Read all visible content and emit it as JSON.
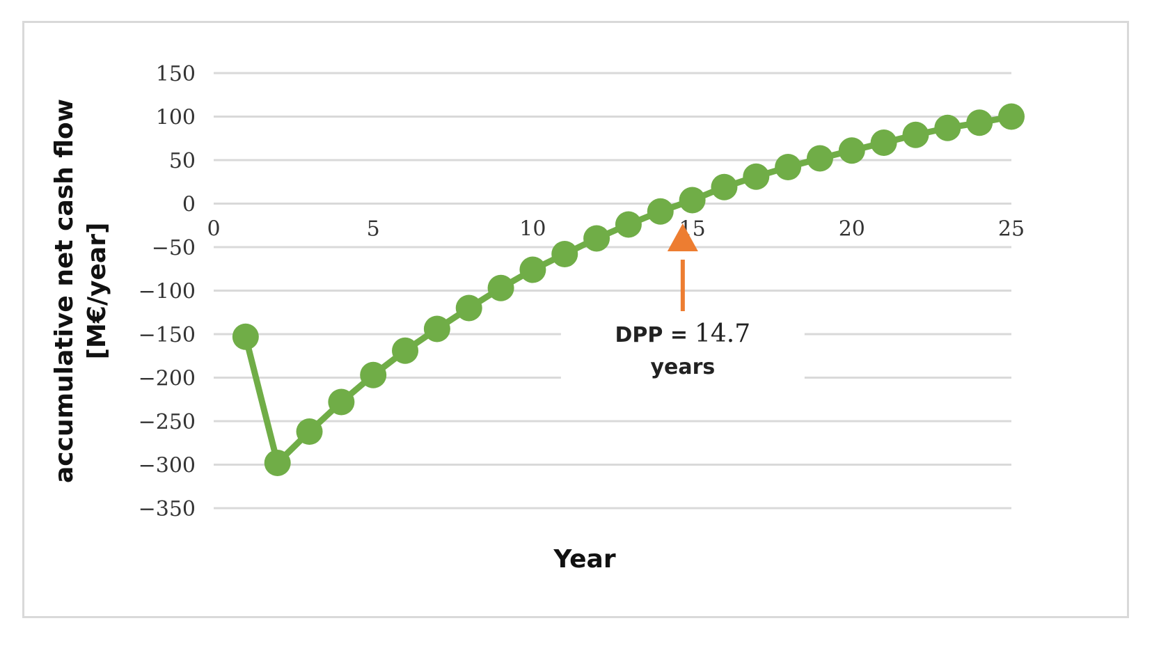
{
  "chart_data": {
    "type": "line",
    "title": "",
    "xlabel": "Year",
    "ylabel": "accumulative net cash flow [M€/year]",
    "ylabel_lines": [
      "accumulative net cash flow",
      "[M€/year]"
    ],
    "xlim": [
      0,
      25
    ],
    "ylim": [
      -350,
      150
    ],
    "xticks": [
      0,
      5,
      10,
      15,
      20,
      25
    ],
    "yticks": [
      150,
      100,
      50,
      0,
      -50,
      -100,
      -150,
      -200,
      -250,
      -300,
      -350
    ],
    "grid": true,
    "legend": "none",
    "series": [
      {
        "color": "#70ad47",
        "marker": "circle",
        "x": [
          1,
          2,
          3,
          4,
          5,
          6,
          7,
          8,
          9,
          10,
          11,
          12,
          13,
          14,
          15,
          16,
          17,
          18,
          19,
          20,
          21,
          22,
          23,
          24,
          25
        ],
        "values": [
          -153,
          -298,
          -262,
          -228,
          -197,
          -169,
          -144,
          -120,
          -97,
          -76,
          -58,
          -40,
          -24,
          -9,
          4,
          19,
          31,
          42,
          52,
          61,
          70,
          79,
          87,
          93,
          100
        ]
      }
    ],
    "annotation": {
      "label": "DPP =",
      "value": "14.7",
      "unit": "years",
      "x": 14.7,
      "arrow_color": "#ed7d31"
    }
  }
}
